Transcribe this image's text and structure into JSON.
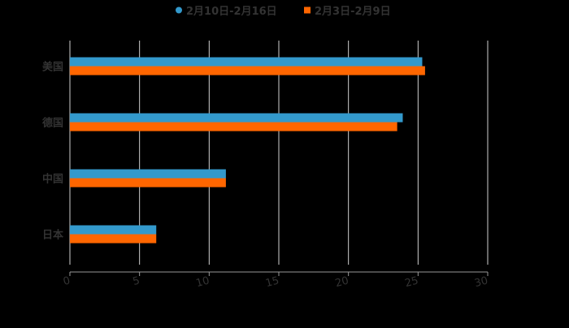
{
  "legend": [
    {
      "label": "2月10日-2月16日",
      "color": "#3399cc",
      "marker": "circle"
    },
    {
      "label": "2月3日-2月9日",
      "color": "#ff6600",
      "marker": "square"
    }
  ],
  "colors": {
    "background": "#000000",
    "text": "#333333",
    "grid": "#d0d0d0",
    "axis": "#999999"
  },
  "chart_data": {
    "type": "bar",
    "orientation": "horizontal",
    "title": "",
    "categories": [
      "美国",
      "德国",
      "中国",
      "日本"
    ],
    "series": [
      {
        "name": "2月10日-2月16日",
        "color": "#3399cc",
        "values": [
          25.3,
          23.9,
          11.2,
          6.2
        ]
      },
      {
        "name": "2月3日-2月9日",
        "color": "#ff6600",
        "values": [
          25.5,
          23.5,
          11.2,
          6.2
        ]
      }
    ],
    "xlabel": "",
    "ylabel": "",
    "xlim": [
      0,
      30
    ],
    "xticks": [
      0,
      5,
      10,
      15,
      20,
      25,
      30
    ],
    "grid": true,
    "legend_position": "top"
  }
}
